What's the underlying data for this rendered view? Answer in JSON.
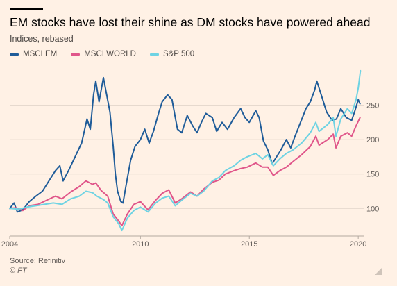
{
  "header": {
    "title": "EM stocks have lost their shine as DM stocks have powered ahead",
    "subtitle": "Indices, rebased"
  },
  "legend": [
    {
      "label": "MSCI EM",
      "color": "#1f5c99"
    },
    {
      "label": "MSCI WORLD",
      "color": "#e0568a"
    },
    {
      "label": "S&P 500",
      "color": "#6ed3e3"
    }
  ],
  "footer": {
    "source": "Source: Refinitiv",
    "copyright": "© FT"
  },
  "chart_data": {
    "type": "line",
    "xlim": [
      2004,
      2020.25
    ],
    "ylim": [
      60,
      310
    ],
    "y_ticks": [
      100,
      150,
      200,
      250
    ],
    "x_ticks": [
      2004,
      2010,
      2015,
      2020
    ],
    "grid": true,
    "legend_position": "top-left",
    "series": [
      {
        "name": "MSCI EM",
        "color": "#1f5c99",
        "points": [
          [
            2004.0,
            100
          ],
          [
            2004.2,
            108
          ],
          [
            2004.35,
            95
          ],
          [
            2004.6,
            98
          ],
          [
            2004.9,
            110
          ],
          [
            2005.2,
            118
          ],
          [
            2005.5,
            125
          ],
          [
            2005.8,
            140
          ],
          [
            2006.1,
            155
          ],
          [
            2006.3,
            162
          ],
          [
            2006.45,
            140
          ],
          [
            2006.7,
            155
          ],
          [
            2007.0,
            175
          ],
          [
            2007.3,
            195
          ],
          [
            2007.55,
            230
          ],
          [
            2007.7,
            215
          ],
          [
            2007.85,
            265
          ],
          [
            2007.95,
            285
          ],
          [
            2008.1,
            255
          ],
          [
            2008.3,
            290
          ],
          [
            2008.45,
            265
          ],
          [
            2008.6,
            240
          ],
          [
            2008.75,
            190
          ],
          [
            2008.85,
            150
          ],
          [
            2008.95,
            125
          ],
          [
            2009.1,
            110
          ],
          [
            2009.2,
            108
          ],
          [
            2009.35,
            135
          ],
          [
            2009.55,
            170
          ],
          [
            2009.75,
            190
          ],
          [
            2010.0,
            200
          ],
          [
            2010.2,
            215
          ],
          [
            2010.4,
            195
          ],
          [
            2010.6,
            212
          ],
          [
            2010.85,
            240
          ],
          [
            2011.0,
            255
          ],
          [
            2011.25,
            265
          ],
          [
            2011.45,
            258
          ],
          [
            2011.7,
            215
          ],
          [
            2011.9,
            210
          ],
          [
            2012.15,
            235
          ],
          [
            2012.4,
            220
          ],
          [
            2012.6,
            210
          ],
          [
            2012.8,
            225
          ],
          [
            2013.0,
            238
          ],
          [
            2013.3,
            232
          ],
          [
            2013.5,
            212
          ],
          [
            2013.75,
            225
          ],
          [
            2014.0,
            215
          ],
          [
            2014.3,
            232
          ],
          [
            2014.6,
            245
          ],
          [
            2014.8,
            232
          ],
          [
            2015.0,
            225
          ],
          [
            2015.3,
            242
          ],
          [
            2015.45,
            232
          ],
          [
            2015.65,
            198
          ],
          [
            2015.85,
            185
          ],
          [
            2016.05,
            165
          ],
          [
            2016.25,
            175
          ],
          [
            2016.45,
            185
          ],
          [
            2016.7,
            200
          ],
          [
            2016.9,
            188
          ],
          [
            2017.1,
            205
          ],
          [
            2017.35,
            225
          ],
          [
            2017.6,
            245
          ],
          [
            2017.8,
            255
          ],
          [
            2018.0,
            272
          ],
          [
            2018.1,
            285
          ],
          [
            2018.3,
            265
          ],
          [
            2018.55,
            240
          ],
          [
            2018.8,
            228
          ],
          [
            2019.0,
            230
          ],
          [
            2019.2,
            245
          ],
          [
            2019.45,
            232
          ],
          [
            2019.7,
            228
          ],
          [
            2019.85,
            242
          ],
          [
            2020.0,
            258
          ],
          [
            2020.08,
            252
          ]
        ]
      },
      {
        "name": "MSCI WORLD",
        "color": "#e0568a",
        "points": [
          [
            2004.0,
            100
          ],
          [
            2004.3,
            101
          ],
          [
            2004.6,
            97
          ],
          [
            2004.9,
            104
          ],
          [
            2005.3,
            106
          ],
          [
            2005.7,
            112
          ],
          [
            2006.1,
            118
          ],
          [
            2006.4,
            114
          ],
          [
            2006.8,
            124
          ],
          [
            2007.2,
            132
          ],
          [
            2007.5,
            140
          ],
          [
            2007.8,
            135
          ],
          [
            2007.95,
            137
          ],
          [
            2008.2,
            126
          ],
          [
            2008.5,
            118
          ],
          [
            2008.75,
            92
          ],
          [
            2009.0,
            82
          ],
          [
            2009.15,
            75
          ],
          [
            2009.4,
            92
          ],
          [
            2009.7,
            106
          ],
          [
            2010.0,
            110
          ],
          [
            2010.35,
            98
          ],
          [
            2010.7,
            112
          ],
          [
            2011.0,
            122
          ],
          [
            2011.3,
            127
          ],
          [
            2011.6,
            108
          ],
          [
            2011.9,
            114
          ],
          [
            2012.3,
            124
          ],
          [
            2012.6,
            118
          ],
          [
            2012.9,
            128
          ],
          [
            2013.3,
            138
          ],
          [
            2013.6,
            141
          ],
          [
            2013.9,
            150
          ],
          [
            2014.3,
            155
          ],
          [
            2014.6,
            158
          ],
          [
            2014.9,
            160
          ],
          [
            2015.3,
            166
          ],
          [
            2015.6,
            160
          ],
          [
            2015.85,
            160
          ],
          [
            2016.1,
            148
          ],
          [
            2016.4,
            155
          ],
          [
            2016.7,
            160
          ],
          [
            2017.0,
            168
          ],
          [
            2017.4,
            178
          ],
          [
            2017.8,
            190
          ],
          [
            2018.05,
            205
          ],
          [
            2018.2,
            192
          ],
          [
            2018.6,
            200
          ],
          [
            2018.85,
            208
          ],
          [
            2018.98,
            188
          ],
          [
            2019.2,
            205
          ],
          [
            2019.5,
            210
          ],
          [
            2019.7,
            205
          ],
          [
            2019.9,
            220
          ],
          [
            2020.08,
            232
          ]
        ]
      },
      {
        "name": "S&P 500",
        "color": "#6ed3e3",
        "points": [
          [
            2004.0,
            100
          ],
          [
            2004.4,
            99
          ],
          [
            2004.8,
            102
          ],
          [
            2005.2,
            104
          ],
          [
            2005.6,
            106
          ],
          [
            2006.0,
            108
          ],
          [
            2006.4,
            106
          ],
          [
            2006.8,
            114
          ],
          [
            2007.2,
            118
          ],
          [
            2007.5,
            125
          ],
          [
            2007.8,
            123
          ],
          [
            2008.0,
            118
          ],
          [
            2008.3,
            113
          ],
          [
            2008.5,
            108
          ],
          [
            2008.75,
            88
          ],
          [
            2009.0,
            78
          ],
          [
            2009.15,
            68
          ],
          [
            2009.4,
            86
          ],
          [
            2009.7,
            97
          ],
          [
            2010.0,
            102
          ],
          [
            2010.35,
            95
          ],
          [
            2010.7,
            108
          ],
          [
            2011.0,
            115
          ],
          [
            2011.3,
            118
          ],
          [
            2011.6,
            104
          ],
          [
            2011.9,
            112
          ],
          [
            2012.3,
            122
          ],
          [
            2012.6,
            118
          ],
          [
            2012.9,
            125
          ],
          [
            2013.3,
            140
          ],
          [
            2013.6,
            145
          ],
          [
            2013.9,
            155
          ],
          [
            2014.3,
            162
          ],
          [
            2014.6,
            170
          ],
          [
            2014.9,
            175
          ],
          [
            2015.3,
            180
          ],
          [
            2015.6,
            172
          ],
          [
            2015.85,
            178
          ],
          [
            2016.1,
            162
          ],
          [
            2016.4,
            172
          ],
          [
            2016.7,
            180
          ],
          [
            2017.0,
            185
          ],
          [
            2017.4,
            195
          ],
          [
            2017.8,
            210
          ],
          [
            2018.05,
            225
          ],
          [
            2018.2,
            212
          ],
          [
            2018.6,
            222
          ],
          [
            2018.85,
            232
          ],
          [
            2018.98,
            205
          ],
          [
            2019.2,
            230
          ],
          [
            2019.5,
            245
          ],
          [
            2019.7,
            238
          ],
          [
            2019.9,
            258
          ],
          [
            2020.0,
            275
          ],
          [
            2020.1,
            300
          ]
        ]
      }
    ]
  }
}
